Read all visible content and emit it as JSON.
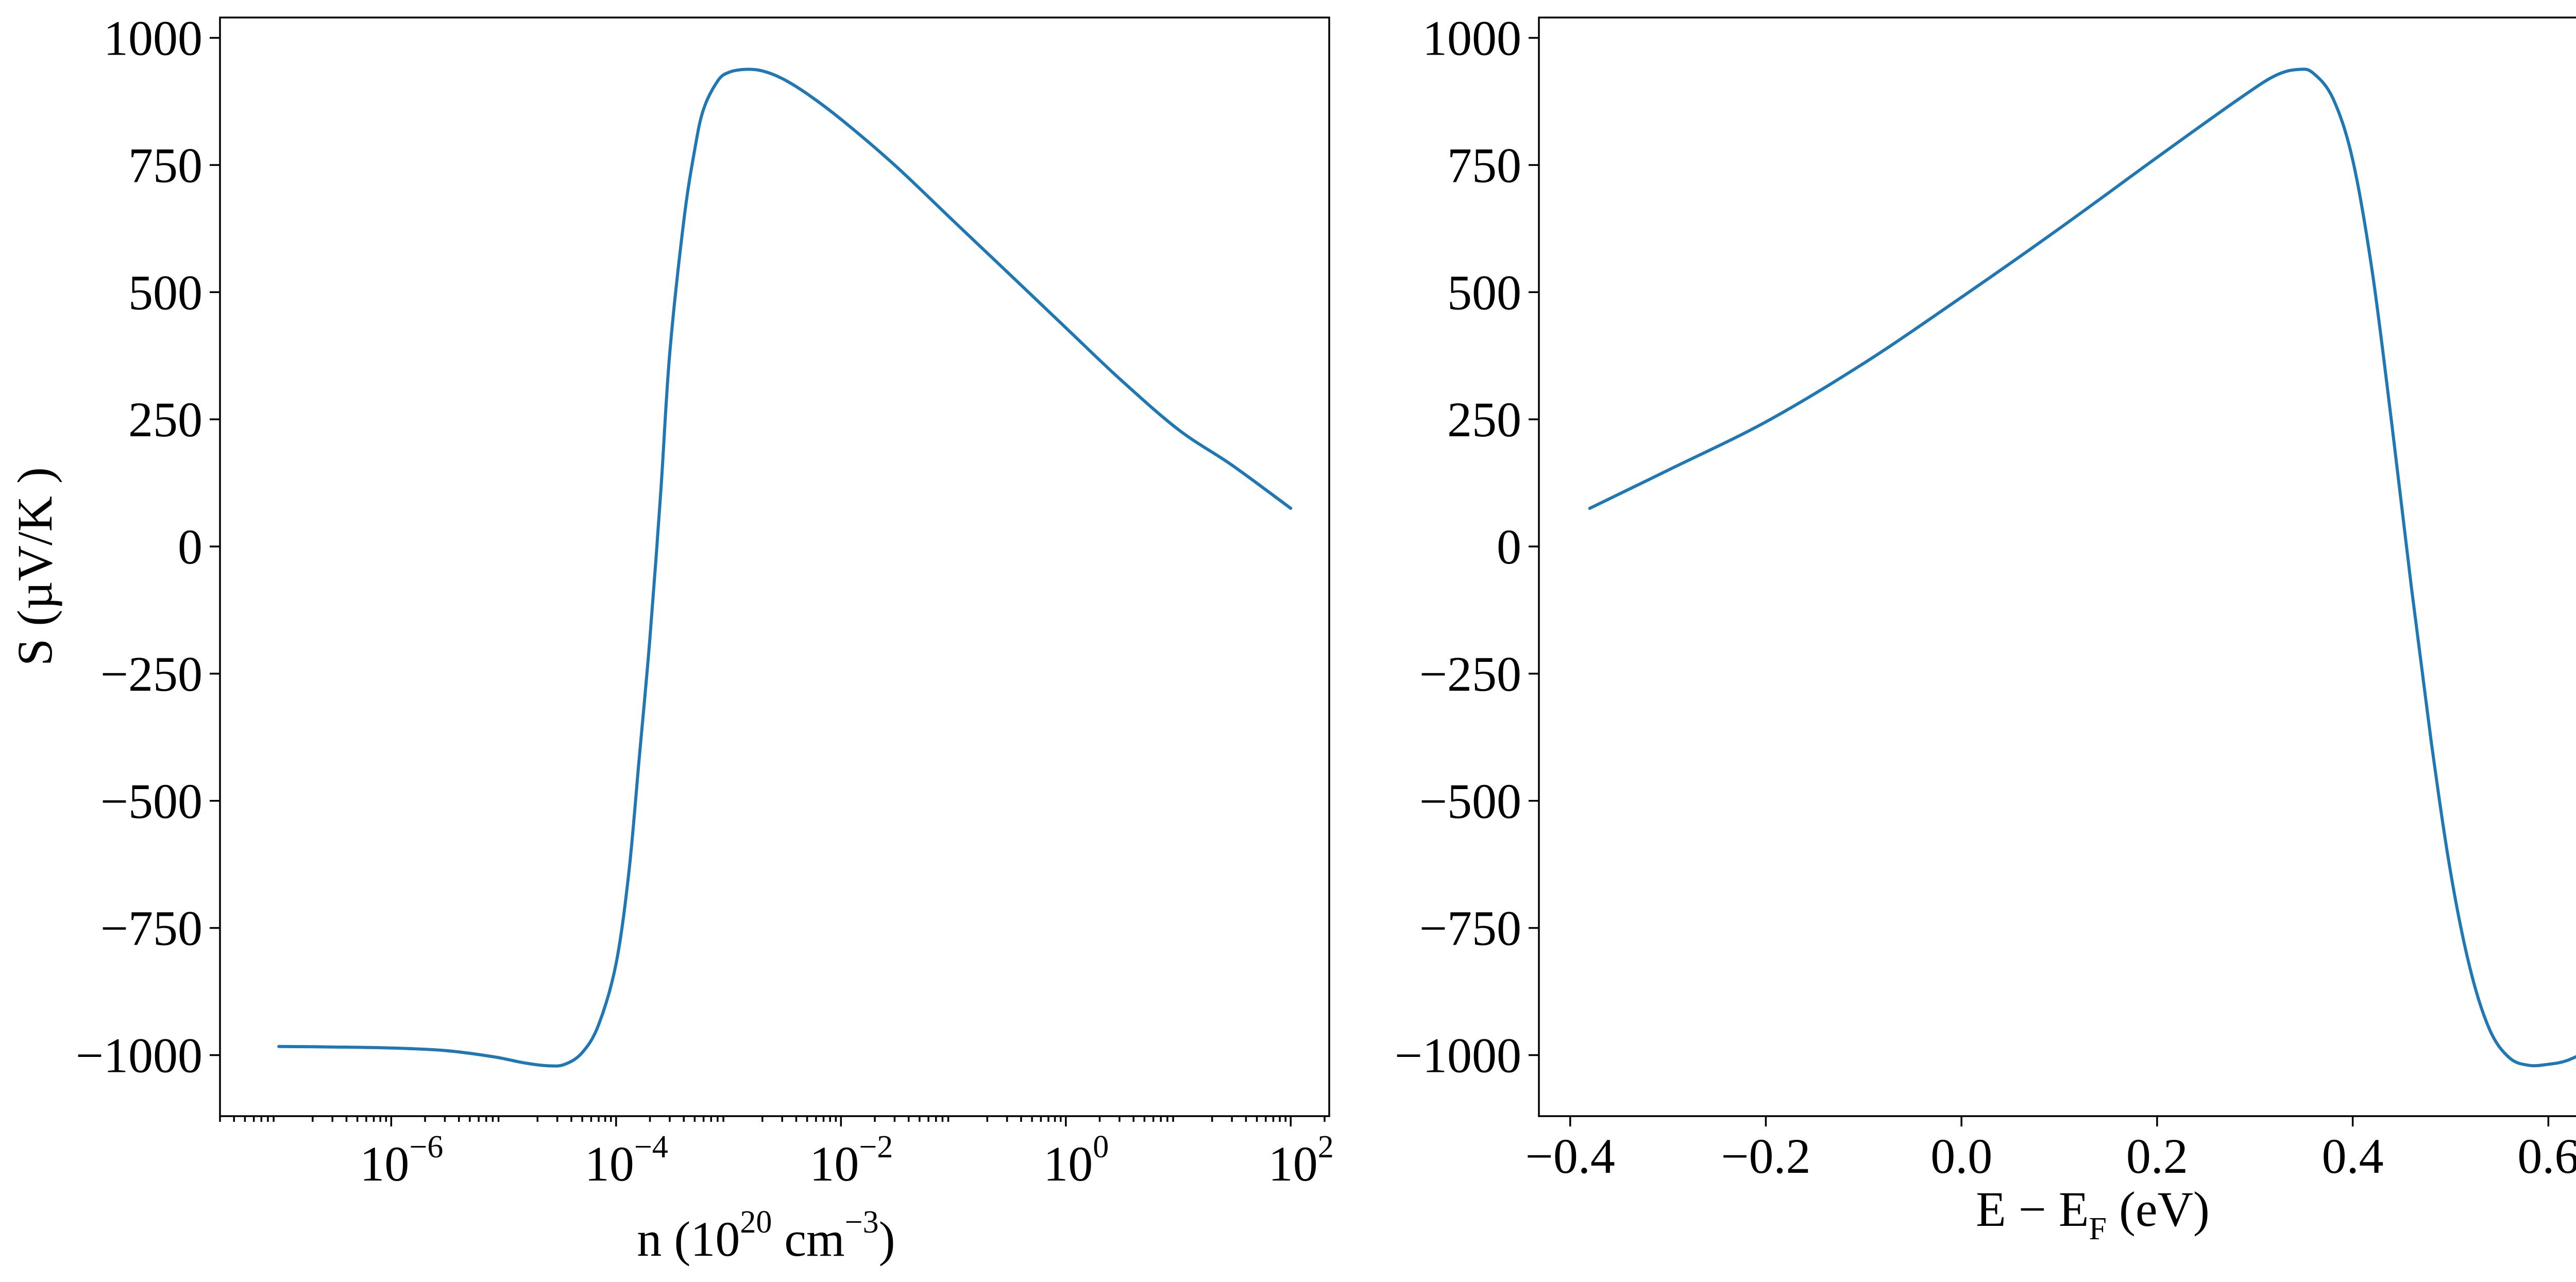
{
  "chart_data": [
    {
      "type": "line",
      "title": "",
      "xlabel": "n (10^20 cm^-3)",
      "xlabel_parts": {
        "base": "n (10",
        "exp1": "20",
        "mid": " cm",
        "exp2": "−3",
        "end": ")"
      },
      "ylabel": "S (µV/K )",
      "xscale": "log",
      "xlim": [
        3e-08,
        220.0
      ],
      "ylim": [
        -1120,
        1040
      ],
      "xticks": [
        {
          "value": 1e-06,
          "base": "10",
          "exp": "−6"
        },
        {
          "value": 0.0001,
          "base": "10",
          "exp": "−4"
        },
        {
          "value": 0.01,
          "base": "10",
          "exp": "−2"
        },
        {
          "value": 1,
          "base": "10",
          "exp": "0"
        },
        {
          "value": 100,
          "base": "10",
          "exp": "2"
        }
      ],
      "yticks": [
        {
          "value": 1000,
          "label": "1000"
        },
        {
          "value": 750,
          "label": "750"
        },
        {
          "value": 500,
          "label": "500"
        },
        {
          "value": 250,
          "label": "250"
        },
        {
          "value": 0,
          "label": "0"
        },
        {
          "value": -250,
          "label": "−250"
        },
        {
          "value": -500,
          "label": "−500"
        },
        {
          "value": -750,
          "label": "−750"
        },
        {
          "value": -1000,
          "label": "−1000"
        }
      ],
      "grid": false,
      "series": [
        {
          "color": "#1f77b4",
          "x": [
            1e-07,
            3e-07,
            1e-06,
            3e-06,
            8e-06,
            1.5e-05,
            2.5e-05,
            3.5e-05,
            5e-05,
            7e-05,
            0.0001,
            0.00013,
            0.00016,
            0.0002,
            0.00025,
            0.0003,
            0.0004,
            0.0005,
            0.0006,
            0.0008,
            0.001,
            0.0014,
            0.002,
            0.003,
            0.005,
            0.01,
            0.03,
            0.1,
            0.3,
            1,
            3,
            10,
            30,
            100
          ],
          "y": [
            -983,
            -984,
            -986,
            -991,
            -1003,
            -1015,
            -1021,
            -1018,
            -995,
            -940,
            -820,
            -640,
            -420,
            -180,
            110,
            380,
            640,
            780,
            860,
            915,
            932,
            938,
            935,
            920,
            890,
            840,
            750,
            640,
            540,
            430,
            330,
            230,
            160,
            75
          ]
        }
      ]
    },
    {
      "type": "line",
      "title": "",
      "xlabel": "E − E_F (eV)",
      "xlabel_parts": {
        "base": "E − E",
        "sub": "F",
        "end": " (eV)"
      },
      "ylabel": "",
      "xscale": "linear",
      "xlim": [
        -0.432,
        0.702
      ],
      "ylim": [
        -1120,
        1040
      ],
      "xticks": [
        {
          "value": -0.4,
          "label": "−0.4"
        },
        {
          "value": -0.2,
          "label": "−0.2"
        },
        {
          "value": 0.0,
          "label": "0.0"
        },
        {
          "value": 0.2,
          "label": "0.2"
        },
        {
          "value": 0.4,
          "label": "0.4"
        },
        {
          "value": 0.6,
          "label": "0.6"
        }
      ],
      "yticks": [
        {
          "value": 1000,
          "label": "1000"
        },
        {
          "value": 750,
          "label": "750"
        },
        {
          "value": 500,
          "label": "500"
        },
        {
          "value": 250,
          "label": "250"
        },
        {
          "value": 0,
          "label": "0"
        },
        {
          "value": -250,
          "label": "−250"
        },
        {
          "value": -500,
          "label": "−500"
        },
        {
          "value": -750,
          "label": "−750"
        },
        {
          "value": -1000,
          "label": "−1000"
        }
      ],
      "grid": false,
      "series": [
        {
          "color": "#1f77b4",
          "x": [
            -0.38,
            -0.3,
            -0.2,
            -0.1,
            0.0,
            0.1,
            0.2,
            0.28,
            0.32,
            0.345,
            0.36,
            0.38,
            0.4,
            0.42,
            0.44,
            0.46,
            0.48,
            0.5,
            0.52,
            0.54,
            0.56,
            0.58,
            0.6,
            0.62,
            0.65
          ],
          "y": [
            75,
            150,
            245,
            360,
            490,
            625,
            765,
            875,
            925,
            938,
            930,
            880,
            760,
            540,
            240,
            -80,
            -380,
            -640,
            -830,
            -950,
            -1005,
            -1020,
            -1018,
            -1010,
            -983
          ]
        }
      ]
    }
  ]
}
